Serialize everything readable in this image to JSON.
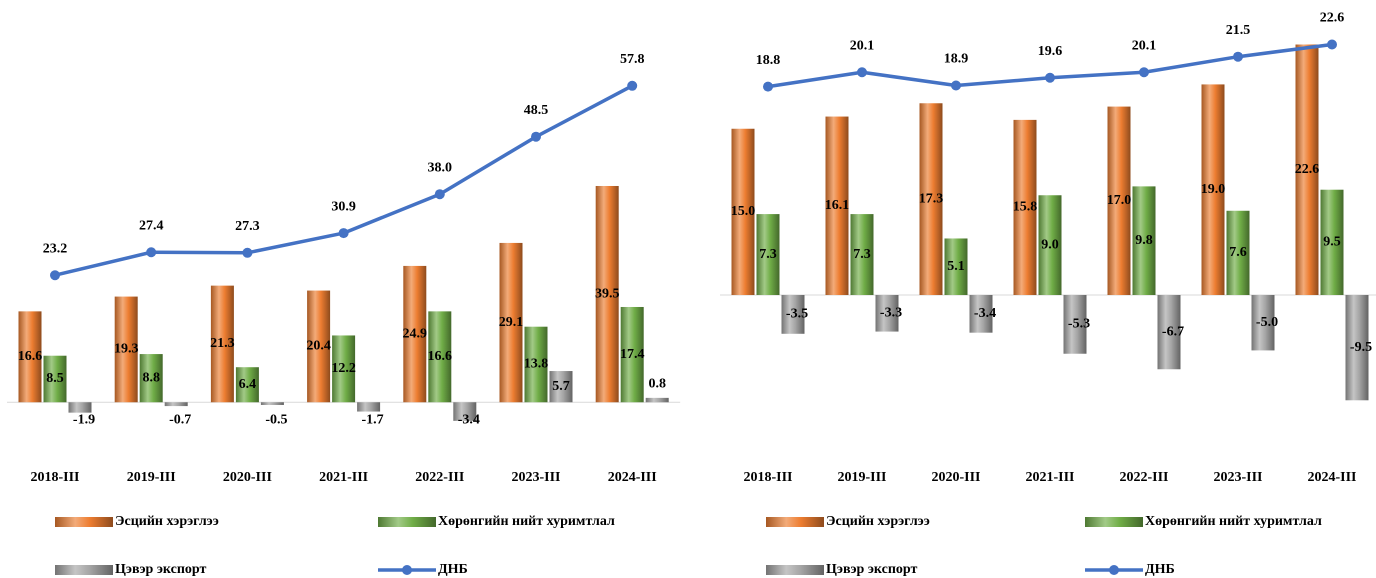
{
  "chart_data": [
    {
      "type": "bar-line",
      "categories": [
        "2018-III",
        "2019-III",
        "2020-III",
        "2021-III",
        "2022-III",
        "2023-III",
        "2024-III"
      ],
      "ylim": [
        -10,
        70
      ],
      "series": [
        {
          "name": "Эсцийн хэрэглээ",
          "color": "#ED7D31",
          "kind": "bar",
          "values": [
            16.6,
            19.3,
            21.3,
            20.4,
            24.9,
            29.1,
            39.5
          ]
        },
        {
          "name": "Хөрөнгийн нийт хуримтлал",
          "color": "#70AD47",
          "kind": "bar",
          "values": [
            8.5,
            8.8,
            6.4,
            12.2,
            16.6,
            13.8,
            17.4
          ]
        },
        {
          "name": "Цэвэр экспорт",
          "color": "#A5A5A5",
          "kind": "bar",
          "values": [
            -1.9,
            -0.7,
            -0.5,
            -1.7,
            -3.4,
            5.7,
            0.8
          ]
        },
        {
          "name": "ДНБ",
          "color": "#4472C4",
          "kind": "line",
          "values": [
            23.2,
            27.4,
            27.3,
            30.9,
            38.0,
            48.5,
            57.8
          ],
          "value_labels": [
            "23.2",
            "27.4",
            "27.3",
            "30.9",
            "38.0",
            "48.5",
            "57.8"
          ]
        }
      ]
    },
    {
      "type": "bar-line",
      "categories": [
        "2018-III",
        "2019-III",
        "2020-III",
        "2021-III",
        "2022-III",
        "2023-III",
        "2024-III"
      ],
      "ylim": [
        -12,
        24
      ],
      "series": [
        {
          "name": "Эсцийн хэрэглээ",
          "color": "#ED7D31",
          "kind": "bar",
          "values": [
            15.0,
            16.1,
            17.3,
            15.8,
            17.0,
            19.0,
            22.6
          ],
          "value_labels": [
            "15.0",
            "16.1",
            "17.3",
            "15.8",
            "17.0",
            "19.0",
            "22.6"
          ]
        },
        {
          "name": "Хөрөнгийн нийт хуримтлал",
          "color": "#70AD47",
          "kind": "bar",
          "values": [
            7.3,
            7.3,
            5.1,
            9.0,
            9.8,
            7.6,
            9.5
          ],
          "value_labels": [
            "7.3",
            "7.3",
            "5.1",
            "9.0",
            "9.8",
            "7.6",
            "9.5"
          ]
        },
        {
          "name": "Цэвэр экспорт",
          "color": "#A5A5A5",
          "kind": "bar",
          "values": [
            -3.5,
            -3.3,
            -3.4,
            -5.3,
            -6.7,
            -5.0,
            -9.5
          ],
          "value_labels": [
            "-3.5",
            "-3.3",
            "-3.4",
            "-5.3",
            "-6.7",
            "-5.0",
            "-9.5"
          ]
        },
        {
          "name": "ДНБ",
          "color": "#4472C4",
          "kind": "line",
          "values": [
            18.8,
            20.1,
            18.9,
            19.6,
            20.1,
            21.5,
            22.6
          ]
        }
      ]
    }
  ]
}
